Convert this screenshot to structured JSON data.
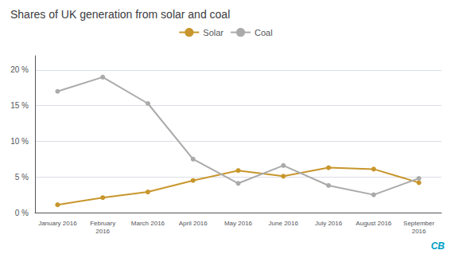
{
  "chart_data": {
    "type": "line",
    "title": "Shares of UK generation from solar and coal",
    "categories": [
      "January 2016",
      "February\n2016",
      "March 2016",
      "April 2016",
      "May 2016",
      "June 2016",
      "July 2016",
      "August 2016",
      "September\n2016"
    ],
    "series": [
      {
        "name": "Solar",
        "color": "#c8962c",
        "values": [
          1.1,
          2.1,
          2.9,
          4.5,
          5.9,
          5.1,
          6.3,
          6.1,
          4.2
        ]
      },
      {
        "name": "Coal",
        "color": "#aaaaaa",
        "values": [
          17.0,
          19.0,
          15.3,
          7.5,
          4.1,
          6.6,
          3.8,
          2.5,
          4.8
        ]
      }
    ],
    "ylim": [
      0,
      22
    ],
    "yticks": [
      {
        "value": 0,
        "label": "0 %"
      },
      {
        "value": 5,
        "label": "5 %"
      },
      {
        "value": 10,
        "label": "10 %"
      },
      {
        "value": 15,
        "label": "15 %"
      },
      {
        "value": 20,
        "label": "20 %"
      }
    ],
    "grid": true,
    "legend": "top",
    "marker": "circle",
    "annotations": [
      {
        "text": "CB",
        "color": "#00a0c6"
      }
    ]
  }
}
